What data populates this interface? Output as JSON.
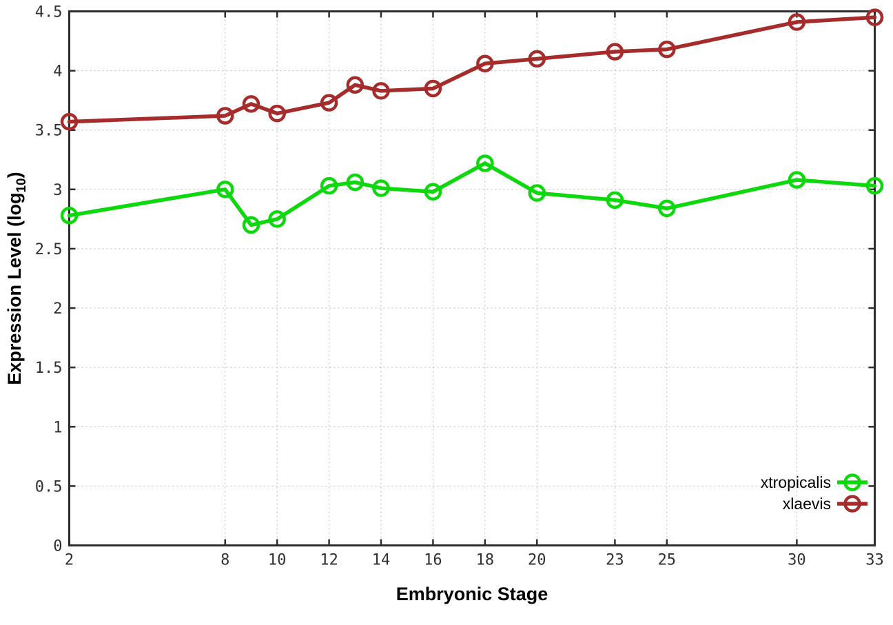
{
  "figure": {
    "background": "#ffffff",
    "axis_color": "#2d2d2d",
    "grid_color": "#b8b8b8",
    "tick_label_color": "#303030"
  },
  "chart_data": {
    "type": "line",
    "title": "",
    "xlabel": "Embryonic Stage",
    "ylabel": "Expression Level (log10)",
    "ylabel_parts": {
      "main": "Expression Level (log",
      "sub": "10",
      "end": ")"
    },
    "xlim": [
      2,
      33
    ],
    "ylim": [
      0,
      4.5
    ],
    "grid": true,
    "legend_position": "bottom-right",
    "x": [
      2,
      8,
      9,
      10,
      12,
      13,
      14,
      16,
      18,
      20,
      23,
      25,
      30,
      33
    ],
    "xticks": [
      2,
      8,
      10,
      12,
      14,
      16,
      18,
      20,
      23,
      25,
      30,
      33
    ],
    "xtick_labels": [
      "2",
      "8",
      "10",
      "12",
      "14",
      "16",
      "18",
      "20",
      "23",
      "25",
      "30",
      "33"
    ],
    "yticks": [
      0,
      0.5,
      1,
      1.5,
      2,
      2.5,
      3,
      3.5,
      4,
      4.5
    ],
    "ytick_labels": [
      "0",
      "0.5",
      "1",
      "1.5",
      "2",
      "2.5",
      "3",
      "3.5",
      "4",
      "4.5"
    ],
    "series": [
      {
        "name": "xtropicalis",
        "color": "#0cd80c",
        "values": [
          2.78,
          3.0,
          2.7,
          2.75,
          3.03,
          3.06,
          3.01,
          2.98,
          3.22,
          2.97,
          2.91,
          2.84,
          3.08,
          3.03
        ]
      },
      {
        "name": "xlaevis",
        "color": "#a62c2c",
        "values": [
          3.57,
          3.62,
          3.72,
          3.64,
          3.73,
          3.88,
          3.83,
          3.85,
          4.06,
          4.1,
          4.16,
          4.18,
          4.41,
          4.45
        ]
      }
    ]
  }
}
